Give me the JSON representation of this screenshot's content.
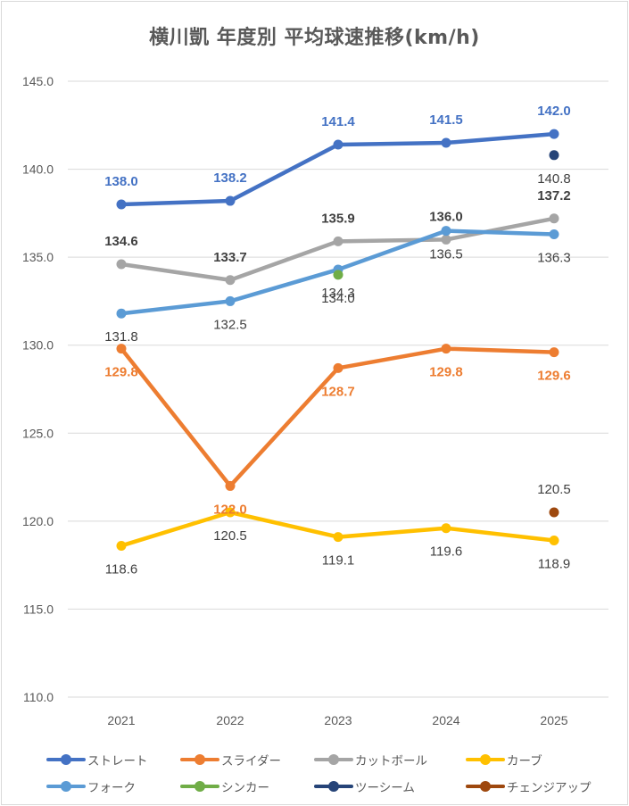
{
  "chart_data": {
    "type": "line",
    "title": "横川凱 年度別 平均球速推移(km/h)",
    "categories": [
      "2021",
      "2022",
      "2023",
      "2024",
      "2025"
    ],
    "ylim": [
      110,
      145
    ],
    "yticks": [
      "110.0",
      "115.0",
      "120.0",
      "125.0",
      "130.0",
      "135.0",
      "140.0",
      "145.0"
    ],
    "ytick_values": [
      110,
      115,
      120,
      125,
      130,
      135,
      140,
      145
    ],
    "grid": true,
    "legend_position": "bottom",
    "series": [
      {
        "name": "ストレート",
        "color": "#4472C4",
        "label_color": "#4472C4",
        "label_bold": true,
        "label_pos": "above",
        "values": [
          138.0,
          138.2,
          141.4,
          141.5,
          142.0
        ],
        "labels": [
          "138.0",
          "138.2",
          "141.4",
          "141.5",
          "142.0"
        ]
      },
      {
        "name": "スライダー",
        "color": "#ED7D31",
        "label_color": "#ED7D31",
        "label_bold": true,
        "label_pos": "below",
        "values": [
          129.8,
          122.0,
          128.7,
          129.8,
          129.6
        ],
        "labels": [
          "129.8",
          "122.0",
          "128.7",
          "129.8",
          "129.6"
        ]
      },
      {
        "name": "カットボール",
        "color": "#A5A5A5",
        "label_color": "#404040",
        "label_bold": true,
        "label_pos": "above",
        "values": [
          134.6,
          133.7,
          135.9,
          136.0,
          137.2
        ],
        "labels": [
          "134.6",
          "133.7",
          "135.9",
          "136.0",
          "137.2"
        ]
      },
      {
        "name": "カーブ",
        "color": "#FFC000",
        "label_color": "#404040",
        "label_bold": false,
        "label_pos": "below",
        "values": [
          118.6,
          120.5,
          119.1,
          119.6,
          118.9
        ],
        "labels": [
          "118.6",
          "120.5",
          "119.1",
          "119.6",
          "118.9"
        ]
      },
      {
        "name": "フォーク",
        "color": "#5B9BD5",
        "label_color": "#404040",
        "label_bold": false,
        "label_pos": "below",
        "values": [
          131.8,
          132.5,
          134.3,
          136.5,
          136.3
        ],
        "labels": [
          "131.8",
          "132.5",
          "134.3",
          "136.5",
          "136.3"
        ]
      },
      {
        "name": "シンカー",
        "color": "#70AD47",
        "label_color": "#404040",
        "label_bold": false,
        "label_pos": "below",
        "values": [
          null,
          null,
          134.0,
          null,
          null
        ],
        "labels": [
          null,
          null,
          "134.0",
          null,
          null
        ]
      },
      {
        "name": "ツーシーム",
        "color": "#264478",
        "label_color": "#404040",
        "label_bold": false,
        "label_pos": "below",
        "values": [
          null,
          null,
          null,
          null,
          140.8
        ],
        "labels": [
          null,
          null,
          null,
          null,
          "140.8"
        ]
      },
      {
        "name": "チェンジアップ",
        "color": "#9E480E",
        "label_color": "#404040",
        "label_bold": false,
        "label_pos": "above",
        "values": [
          null,
          null,
          null,
          null,
          120.5
        ],
        "labels": [
          null,
          null,
          null,
          null,
          "120.5"
        ]
      }
    ]
  },
  "legend": [
    [
      {
        "label": "ストレート",
        "color": "#4472C4"
      },
      {
        "label": "スライダー",
        "color": "#ED7D31"
      },
      {
        "label": "カットボール",
        "color": "#A5A5A5"
      },
      {
        "label": "カーブ",
        "color": "#FFC000"
      }
    ],
    [
      {
        "label": "フォーク",
        "color": "#5B9BD5"
      },
      {
        "label": "シンカー",
        "color": "#70AD47"
      },
      {
        "label": "ツーシーム",
        "color": "#264478"
      },
      {
        "label": "チェンジアップ",
        "color": "#9E480E"
      }
    ]
  ]
}
